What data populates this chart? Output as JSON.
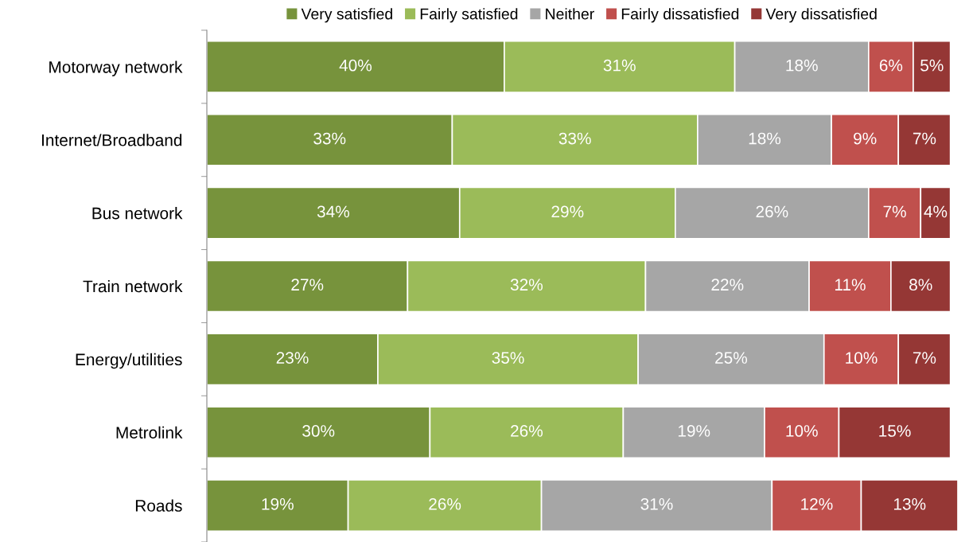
{
  "chart_data": {
    "type": "bar",
    "orientation": "horizontal",
    "stacked": true,
    "legend": "top",
    "categories": [
      "Motorway network",
      "Internet/Broadband",
      "Bus network",
      "Train network",
      "Energy/utilities",
      "Metrolink",
      "Roads"
    ],
    "series": [
      {
        "name": "Very satisfied",
        "color": "#77933c",
        "values": [
          40,
          33,
          34,
          27,
          23,
          30,
          19
        ],
        "value_labels": [
          "40%",
          "33%",
          "34%",
          "27%",
          "23%",
          "30%",
          "19%"
        ]
      },
      {
        "name": "Fairly satisfied",
        "color": "#9bbb59",
        "values": [
          31,
          33,
          29,
          32,
          35,
          26,
          26
        ],
        "value_labels": [
          "31%",
          "33%",
          "29%",
          "32%",
          "35%",
          "26%",
          "26%"
        ]
      },
      {
        "name": "Neither",
        "color": "#a6a6a6",
        "values": [
          18,
          18,
          26,
          22,
          25,
          19,
          31
        ],
        "value_labels": [
          "18%",
          "18%",
          "26%",
          "22%",
          "25%",
          "19%",
          "31%"
        ]
      },
      {
        "name": "Fairly dissatisfied",
        "color": "#c0504d",
        "values": [
          6,
          9,
          7,
          11,
          10,
          10,
          12
        ],
        "value_labels": [
          "6%",
          "9%",
          "7%",
          "11%",
          "10%",
          "10%",
          "12%"
        ]
      },
      {
        "name": "Very dissatisfied",
        "color": "#953735",
        "values": [
          5,
          7,
          4,
          8,
          7,
          15,
          13
        ],
        "value_labels": [
          "5%",
          "7%",
          "4%",
          "8%",
          "7%",
          "15%",
          "13%"
        ]
      }
    ]
  }
}
